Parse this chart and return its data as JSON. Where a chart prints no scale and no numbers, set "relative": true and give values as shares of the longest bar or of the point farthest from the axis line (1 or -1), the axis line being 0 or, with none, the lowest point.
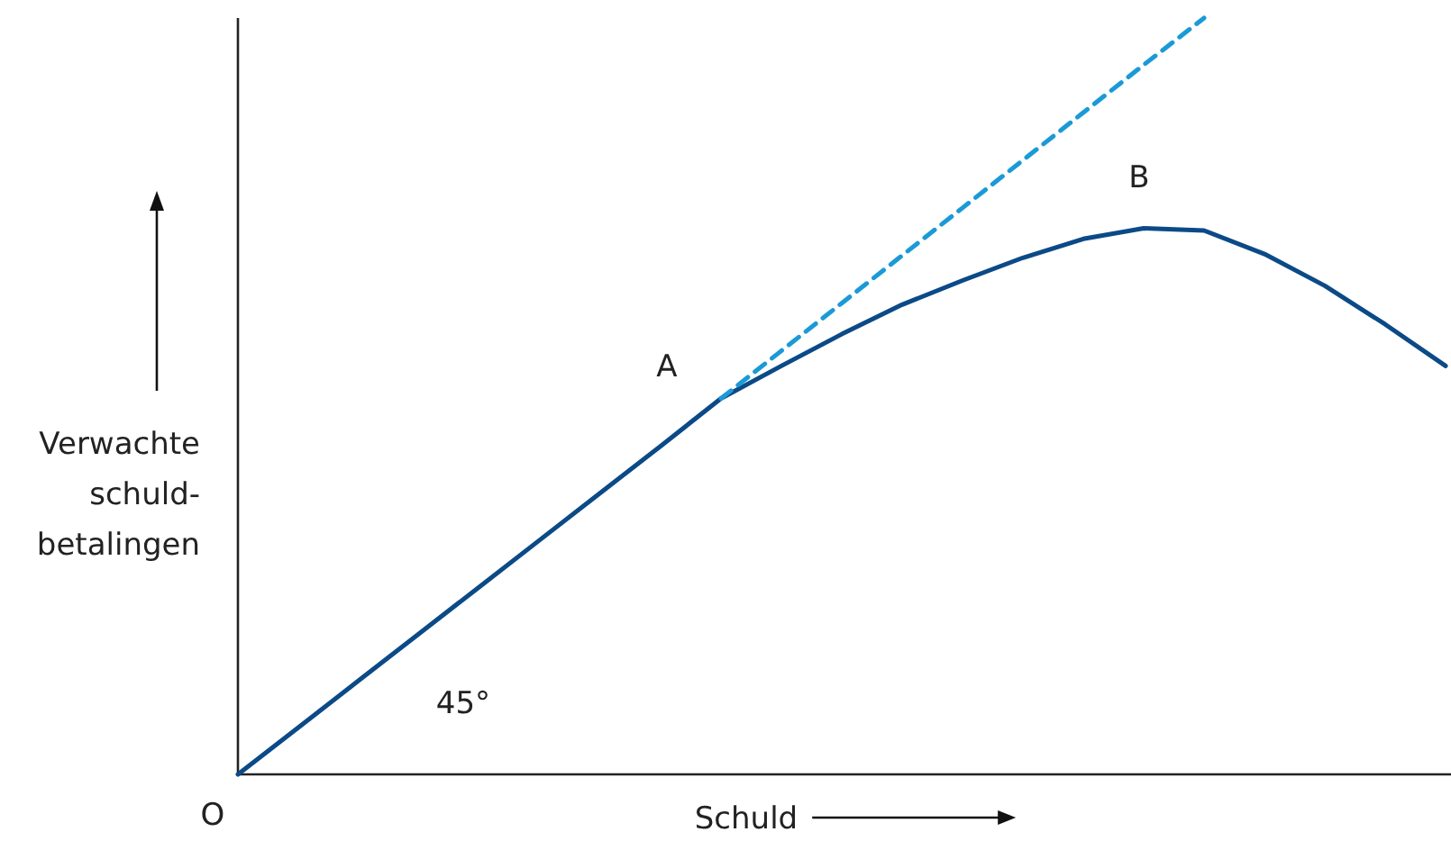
{
  "chart_data": {
    "type": "line",
    "relative": true,
    "xlabel": "Schuld",
    "ylabel": "Verwachte schuld-betalingen",
    "marker": "none",
    "categories": [
      null,
      null,
      null,
      null,
      null,
      null,
      null,
      null,
      null,
      null,
      null,
      null,
      null,
      null,
      null,
      null,
      null,
      null,
      null,
      null,
      null
    ],
    "series": [
      {
        "color": "#0b4a87",
        "line_style": "solid",
        "values": [
          0,
          0.062,
          0.124,
          0.186,
          0.248,
          0.31,
          0.372,
          0.434,
          0.497,
          0.54,
          0.582,
          0.621,
          0.653,
          0.683,
          0.708,
          0.722,
          0.719,
          0.688,
          0.646,
          0.595,
          0.54
        ]
      },
      {
        "color": "#1a9ad6",
        "line_style": "dashed",
        "values": [
          null,
          null,
          null,
          null,
          null,
          null,
          null,
          null,
          0.497,
          0.56,
          0.623,
          0.686,
          0.749,
          0.812,
          0.875,
          0.938,
          1.0,
          null,
          null,
          null,
          null
        ]
      }
    ],
    "annotations": [
      "O",
      "A",
      "B",
      "45°"
    ]
  }
}
